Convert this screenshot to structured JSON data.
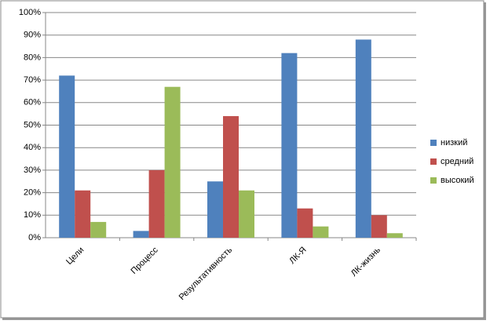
{
  "chart_data": {
    "type": "bar",
    "categories": [
      "Цели",
      "Процесс",
      "Результативность",
      "ЛК-Я",
      "ЛК-жизнь"
    ],
    "series": [
      {
        "name": "низкий",
        "color": "#4f81bd",
        "values": [
          72,
          3,
          25,
          82,
          88
        ]
      },
      {
        "name": "средний",
        "color": "#c0504d",
        "values": [
          21,
          30,
          54,
          13,
          10
        ]
      },
      {
        "name": "высокий",
        "color": "#9bbb59",
        "values": [
          7,
          67,
          21,
          5,
          2
        ]
      }
    ],
    "ylim": [
      0,
      100
    ],
    "yticks": [
      {
        "value": 0,
        "label": "0%"
      },
      {
        "value": 10,
        "label": "10%"
      },
      {
        "value": 20,
        "label": "20%"
      },
      {
        "value": 30,
        "label": "30%"
      },
      {
        "value": 40,
        "label": "40%"
      },
      {
        "value": 50,
        "label": "50%"
      },
      {
        "value": 60,
        "label": "60%"
      },
      {
        "value": 70,
        "label": "70%"
      },
      {
        "value": 80,
        "label": "80%"
      },
      {
        "value": 90,
        "label": "90%"
      },
      {
        "value": 100,
        "label": "100%"
      }
    ],
    "grid": true,
    "legend": "right"
  }
}
